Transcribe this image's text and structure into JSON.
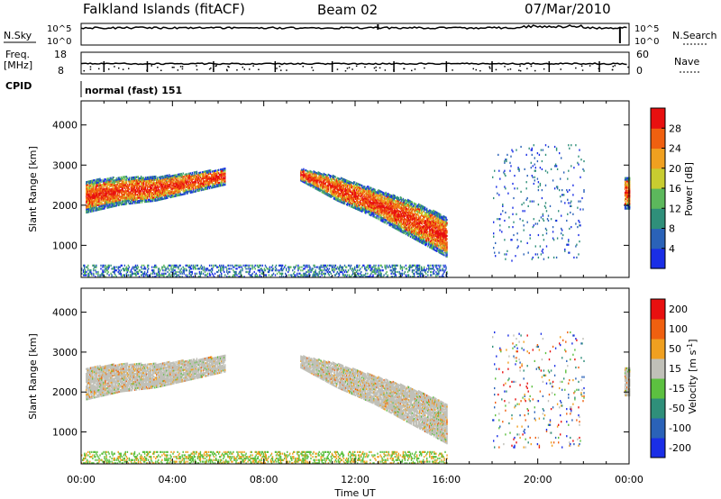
{
  "header": {
    "title": "Falkland Islands (fitACF)",
    "beam": "Beam 02",
    "date": "07/Mar/2010"
  },
  "noise_panel": {
    "left_label": "N.Sky",
    "left_ticks": [
      "10^5",
      "10^0"
    ],
    "right_label": "N.Search",
    "right_ticks": [
      "10^5",
      "10^0"
    ]
  },
  "freq_panel": {
    "left_label_1": "Freq.",
    "left_label_2": "[MHz]",
    "left_ticks": [
      "18",
      "8"
    ],
    "right_label": "Nave",
    "right_ticks": [
      "60",
      "0"
    ]
  },
  "cpid_panel": {
    "label": "CPID",
    "mode": "normal (fast) 151"
  },
  "chart_data": [
    {
      "type": "heatmap",
      "name": "power",
      "ylabel": "Slant Range [km]",
      "xlabel": "",
      "xlim": [
        0,
        24
      ],
      "ylim": [
        200,
        4600
      ],
      "y_ticks": [
        1000,
        2000,
        3000,
        4000
      ],
      "colorbar": {
        "label": "Power [dB]",
        "range": [
          0,
          32
        ],
        "ticks": [
          4,
          8,
          12,
          16,
          20,
          24,
          28
        ],
        "colors": [
          "#1a2ee6",
          "#2a62b8",
          "#2f8f7a",
          "#5cb85c",
          "#c8cc30",
          "#f0a020",
          "#f06010",
          "#e81010"
        ]
      },
      "regions": [
        {
          "t0": 0.2,
          "t1": 6.3,
          "r_low": [
            1800,
            2000,
            2100,
            2300,
            2500
          ],
          "r_high": [
            2600,
            2700,
            2700,
            2800,
            2900
          ],
          "level": "high"
        },
        {
          "t0": 9.6,
          "t1": 16.0,
          "r_low": [
            2600,
            2100,
            1700,
            1200,
            700
          ],
          "r_high": [
            2900,
            2700,
            2400,
            2100,
            1700
          ],
          "level": "high"
        },
        {
          "t0": 18.0,
          "t1": 22.0,
          "r_low": [
            600
          ],
          "r_high": [
            3500
          ],
          "level": "sparse"
        },
        {
          "t0": 23.8,
          "t1": 24.0,
          "r_low": [
            1900
          ],
          "r_high": [
            2700
          ],
          "level": "high"
        },
        {
          "t0": 0.0,
          "t1": 16.0,
          "r_low": [
            200
          ],
          "r_high": [
            500
          ],
          "level": "ground"
        }
      ]
    },
    {
      "type": "heatmap",
      "name": "velocity",
      "ylabel": "Slant Range [km]",
      "xlabel": "Time UT",
      "xlim": [
        0,
        24
      ],
      "ylim": [
        200,
        4600
      ],
      "x_ticks": [
        "00:00",
        "04:00",
        "08:00",
        "12:00",
        "16:00",
        "20:00",
        "00:00"
      ],
      "y_ticks": [
        1000,
        2000,
        3000,
        4000
      ],
      "colorbar": {
        "label": "Velocity [m s^-1]",
        "ticks": [
          "200",
          "100",
          "50",
          "15",
          "-15",
          "-50",
          "-100",
          "-200"
        ],
        "colors": [
          "#1a2ee6",
          "#2a62b8",
          "#2f8f7a",
          "#5cc040",
          "#c0c0b8",
          "#f0a020",
          "#f06010",
          "#e81010"
        ]
      },
      "regions": [
        {
          "t0": 0.2,
          "t1": 6.3,
          "r_low": [
            1800,
            2000,
            2100,
            2300,
            2500
          ],
          "r_high": [
            2600,
            2700,
            2700,
            2800,
            2900
          ],
          "level": "grey"
        },
        {
          "t0": 9.6,
          "t1": 16.0,
          "r_low": [
            2600,
            2100,
            1700,
            1200,
            700
          ],
          "r_high": [
            2900,
            2700,
            2400,
            2100,
            1700
          ],
          "level": "grey"
        },
        {
          "t0": 18.0,
          "t1": 22.0,
          "r_low": [
            600
          ],
          "r_high": [
            3500
          ],
          "level": "sparse"
        },
        {
          "t0": 23.8,
          "t1": 24.0,
          "r_low": [
            1900
          ],
          "r_high": [
            2600
          ],
          "level": "grey"
        },
        {
          "t0": 0.0,
          "t1": 16.0,
          "r_low": [
            200
          ],
          "r_high": [
            500
          ],
          "level": "ground"
        }
      ]
    }
  ]
}
